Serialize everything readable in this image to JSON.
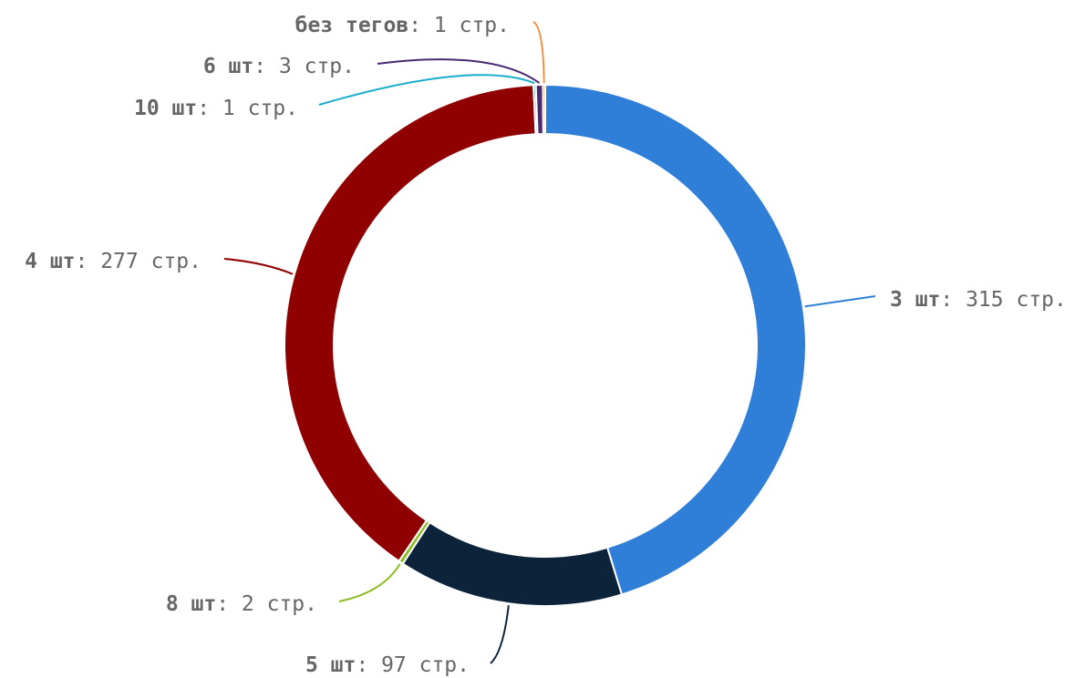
{
  "chart_data": {
    "type": "pie",
    "variant": "donut",
    "slices": [
      {
        "name": "3 шт",
        "value": 315,
        "text": ": 315 стр.",
        "color": "#2f7ed8"
      },
      {
        "name": "5 шт",
        "value": 97,
        "text": ": 97 стр.",
        "color": "#0d233a"
      },
      {
        "name": "8 шт",
        "value": 2,
        "text": ": 2 стр.",
        "color": "#8bbc21"
      },
      {
        "name": "4 шт",
        "value": 277,
        "text": ": 277 стр.",
        "color": "#910000"
      },
      {
        "name": "10 шт",
        "value": 1,
        "text": ": 1 стр.",
        "color": "#1aadce"
      },
      {
        "name": "6 шт",
        "value": 3,
        "text": ": 3 стр.",
        "color": "#492970"
      },
      {
        "name": "без тегов",
        "value": 1,
        "text": ": 1 стр.",
        "color": "#f28f43"
      }
    ]
  }
}
